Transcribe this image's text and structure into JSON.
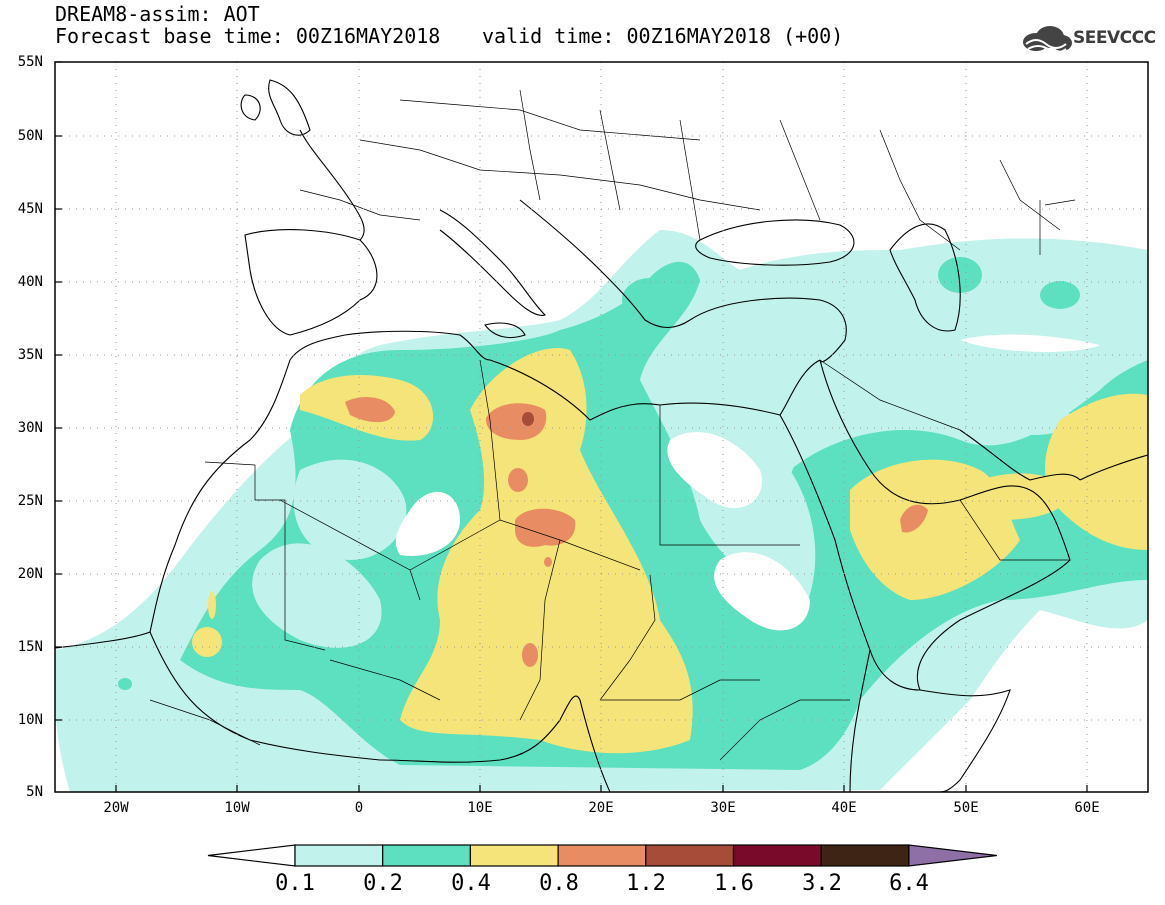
{
  "header": {
    "model_line": "DREAM8-assim: AOT",
    "base_time": "Forecast base time: 00Z16MAY2018",
    "valid_time": "valid time: 00Z16MAY2018 (+00)"
  },
  "logo": {
    "text": "SEEVCCC"
  },
  "map": {
    "lat_labels": [
      "55N",
      "50N",
      "45N",
      "40N",
      "35N",
      "30N",
      "25N",
      "20N",
      "15N",
      "10N",
      "5N"
    ],
    "lon_labels": [
      "20W",
      "10W",
      "0",
      "10E",
      "20E",
      "30E",
      "40E",
      "50E",
      "60E"
    ],
    "lat_range": [
      5,
      55
    ],
    "lon_range": [
      -25,
      65
    ],
    "gridlines": "dotted"
  },
  "colorbar": {
    "labels": [
      "0.1",
      "0.2",
      "0.4",
      "0.8",
      "1.2",
      "1.6",
      "3.2",
      "6.4"
    ],
    "colors": [
      "#ffffff",
      "#c2f2ec",
      "#5ce0bf",
      "#f5e479",
      "#e88d63",
      "#a84c3a",
      "#7a0a2a",
      "#3d2414",
      "#8e6fa6"
    ]
  }
}
